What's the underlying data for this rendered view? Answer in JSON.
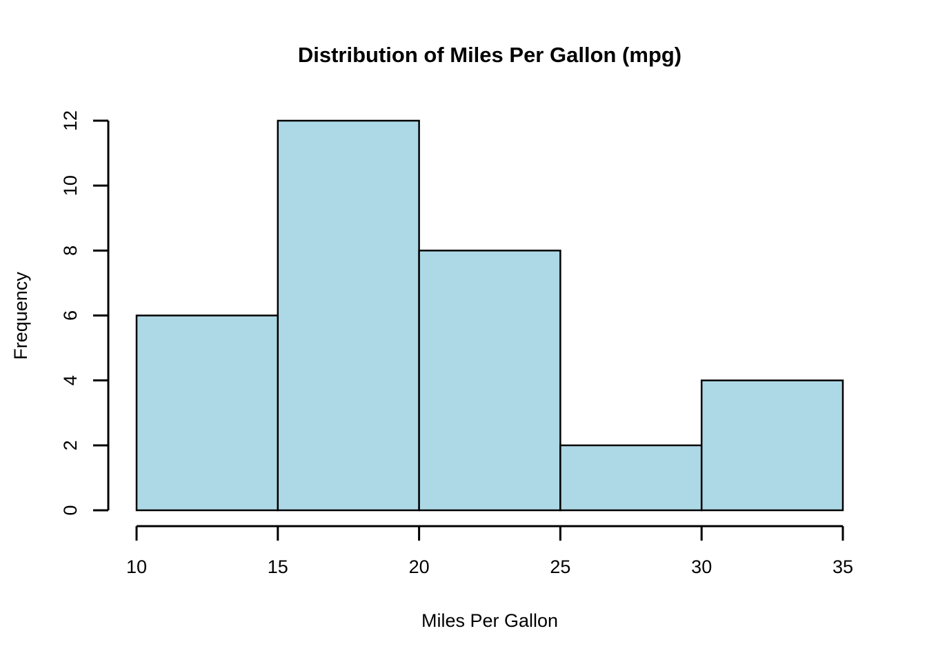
{
  "chart_data": {
    "type": "bar",
    "subtype": "histogram",
    "title": "Distribution of Miles Per Gallon (mpg)",
    "xlabel": "Miles Per Gallon",
    "ylabel": "Frequency",
    "bin_edges": [
      10,
      15,
      20,
      25,
      30,
      35
    ],
    "counts": [
      6,
      12,
      8,
      2,
      4
    ],
    "x_ticks": [
      10,
      15,
      20,
      25,
      30,
      35
    ],
    "y_ticks": [
      0,
      2,
      4,
      6,
      8,
      10,
      12
    ],
    "xlim": [
      10,
      35
    ],
    "ylim": [
      0,
      12
    ],
    "grid": false,
    "legend": null,
    "colors": {
      "bar_fill": "#ADD8E6",
      "bar_border": "#000000",
      "axis": "#000000",
      "text": "#000000",
      "background": "#FFFFFF"
    }
  }
}
